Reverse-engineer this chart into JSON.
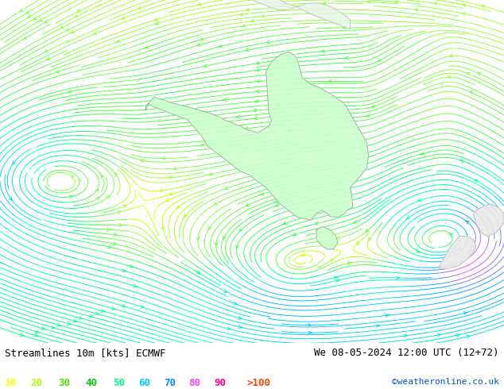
{
  "title_left": "Streamlines 10m [kts] ECMWF",
  "title_right": "We 08-05-2024 12:00 UTC (12+72)",
  "credit": "©weatheronline.co.uk",
  "legend_values": [
    "10",
    "20",
    "30",
    "40",
    "50",
    "60",
    "70",
    "80",
    "90",
    ">100"
  ],
  "legend_colors": [
    "#ffff00",
    "#aaff00",
    "#55ff00",
    "#00ff55",
    "#00ff00",
    "#00ffaa",
    "#00ccff",
    "#0099ff",
    "#ff00ff",
    "#ff00aa"
  ],
  "bg_color": "#ebebeb",
  "ocean_color": "#ebebeb",
  "australia_color": "#ccffcc",
  "font_size_title": 9,
  "font_size_legend": 9,
  "cmap_colors": [
    "#ffff00",
    "#ccff00",
    "#88ff00",
    "#44ff44",
    "#00ff88",
    "#00ffcc",
    "#00ccff",
    "#0099ff",
    "#ff00ff"
  ],
  "australia_lon_min": 113.0,
  "australia_lon_max": 154.0,
  "australia_lat_min": -43.5,
  "australia_lat_max": -10.5,
  "lon_min": 88.0,
  "lon_max": 178.0,
  "lat_min": -58.0,
  "lat_max": -5.0
}
